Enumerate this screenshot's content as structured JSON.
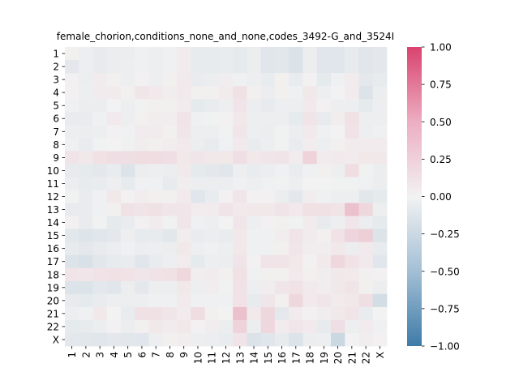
{
  "chart_data": {
    "type": "heatmap",
    "title": "female_chorion,conditions_none_and_none,codes_3492-G_and_3524I",
    "x_categories": [
      "1",
      "2",
      "3",
      "4",
      "5",
      "6",
      "7",
      "8",
      "9",
      "10",
      "11",
      "12",
      "13",
      "14",
      "15",
      "16",
      "17",
      "18",
      "19",
      "20",
      "21",
      "22",
      "X"
    ],
    "y_categories": [
      "1",
      "2",
      "3",
      "4",
      "5",
      "6",
      "7",
      "8",
      "9",
      "10",
      "11",
      "12",
      "13",
      "14",
      "15",
      "16",
      "17",
      "18",
      "19",
      "20",
      "21",
      "22",
      "X"
    ],
    "colorbar": {
      "range": [
        -1.0,
        1.0
      ],
      "ticks": [
        1.0,
        0.75,
        0.5,
        0.25,
        0.0,
        -0.25,
        -0.5,
        -0.75,
        -1.0
      ],
      "tick_labels": [
        "1.00",
        "0.75",
        "0.50",
        "0.25",
        "0.00",
        "−0.25",
        "−0.50",
        "−0.75",
        "−1.00"
      ],
      "colormap": "diverging blue-white-red",
      "low_color": "#3e7ba8",
      "mid_color": "#f2f2f2",
      "high_color": "#d9436f"
    },
    "values": [
      [
        0.02,
        -0.03,
        -0.06,
        -0.04,
        -0.04,
        -0.02,
        -0.03,
        -0.02,
        0.04,
        -0.06,
        -0.06,
        -0.05,
        -0.07,
        -0.04,
        -0.1,
        -0.09,
        -0.13,
        -0.04,
        -0.1,
        -0.1,
        -0.06,
        -0.1,
        -0.08
      ],
      [
        -0.08,
        -0.03,
        -0.06,
        -0.04,
        -0.03,
        -0.02,
        -0.03,
        -0.02,
        0.04,
        -0.06,
        -0.06,
        -0.05,
        -0.07,
        -0.04,
        -0.1,
        -0.09,
        -0.13,
        -0.04,
        -0.1,
        -0.1,
        -0.06,
        -0.1,
        -0.08
      ],
      [
        0.01,
        -0.04,
        0.04,
        0.02,
        -0.03,
        0.01,
        -0.03,
        0.02,
        0.05,
        -0.05,
        -0.04,
        0.03,
        -0.02,
        -0.03,
        -0.05,
        0.02,
        -0.05,
        0.01,
        -0.07,
        -0.02,
        0.04,
        -0.08,
        -0.06
      ],
      [
        0.01,
        -0.03,
        0.04,
        0.04,
        0.02,
        0.07,
        0.05,
        0.03,
        0.05,
        0.02,
        0.02,
        0.04,
        0.1,
        0.02,
        -0.04,
        0.02,
        -0.02,
        0.06,
        -0.03,
        0.0,
        0.04,
        -0.12,
        -0.04
      ],
      [
        -0.02,
        -0.04,
        -0.04,
        0.0,
        -0.03,
        -0.01,
        0.02,
        0.02,
        0.04,
        -0.07,
        -0.05,
        -0.03,
        0.08,
        -0.04,
        -0.06,
        -0.03,
        -0.03,
        0.05,
        0.01,
        -0.03,
        -0.03,
        -0.07,
        -0.03
      ],
      [
        -0.05,
        -0.05,
        -0.02,
        0.05,
        -0.03,
        0.02,
        0.03,
        0.03,
        0.08,
        -0.02,
        -0.01,
        0.01,
        0.06,
        -0.03,
        -0.03,
        -0.03,
        -0.07,
        0.08,
        -0.06,
        0.03,
        0.1,
        -0.03,
        -0.03
      ],
      [
        -0.03,
        -0.04,
        -0.03,
        0.01,
        -0.02,
        0.04,
        0.04,
        0.02,
        0.07,
        -0.03,
        -0.03,
        -0.01,
        0.07,
        -0.03,
        -0.04,
        -0.01,
        -0.04,
        0.05,
        -0.02,
        0.0,
        0.09,
        -0.03,
        -0.02
      ],
      [
        -0.02,
        -0.05,
        -0.01,
        0.0,
        -0.02,
        0.03,
        0.02,
        0.03,
        0.05,
        -0.04,
        -0.06,
        -0.02,
        0.05,
        -0.05,
        -0.03,
        -0.01,
        -0.05,
        0.03,
        -0.03,
        0.02,
        0.04,
        0.04,
        0.04
      ],
      [
        0.08,
        0.06,
        0.1,
        0.11,
        0.11,
        0.12,
        0.12,
        0.11,
        0.06,
        0.07,
        0.06,
        0.06,
        0.11,
        0.06,
        0.07,
        0.08,
        0.04,
        0.18,
        0.04,
        0.05,
        0.04,
        0.06,
        0.06
      ],
      [
        -0.06,
        -0.07,
        -0.08,
        -0.05,
        -0.12,
        -0.04,
        -0.03,
        -0.04,
        0.05,
        -0.07,
        -0.08,
        -0.1,
        -0.03,
        -0.05,
        -0.04,
        -0.02,
        -0.05,
        -0.02,
        0.02,
        -0.03,
        0.12,
        -0.01,
        -0.04
      ],
      [
        -0.04,
        -0.06,
        -0.05,
        -0.03,
        -0.06,
        -0.02,
        -0.02,
        -0.06,
        0.03,
        -0.04,
        -0.04,
        -0.04,
        -0.02,
        -0.03,
        -0.02,
        -0.01,
        -0.03,
        0.0,
        0.0,
        -0.01,
        -0.01,
        -0.02,
        -0.04
      ],
      [
        -0.01,
        -0.05,
        -0.02,
        0.06,
        0.01,
        0.03,
        0.02,
        0.02,
        0.05,
        -0.1,
        -0.05,
        0.01,
        0.07,
        0.01,
        0.01,
        -0.04,
        -0.08,
        0.03,
        -0.02,
        -0.03,
        -0.03,
        -0.09,
        -0.07
      ],
      [
        -0.06,
        -0.05,
        -0.02,
        0.02,
        0.1,
        0.08,
        0.1,
        0.07,
        0.07,
        0.04,
        0.04,
        0.08,
        0.05,
        0.06,
        0.06,
        0.08,
        0.05,
        0.1,
        0.1,
        0.08,
        0.28,
        0.15,
        -0.03
      ],
      [
        0.01,
        -0.05,
        -0.01,
        -0.07,
        -0.05,
        0.01,
        0.04,
        -0.01,
        0.07,
        -0.02,
        -0.03,
        0.0,
        0.07,
        -0.03,
        0.01,
        0.02,
        -0.01,
        0.04,
        -0.06,
        -0.03,
        0.07,
        -0.04,
        -0.07
      ],
      [
        -0.09,
        -0.11,
        -0.1,
        -0.08,
        -0.03,
        -0.06,
        -0.06,
        -0.09,
        0.03,
        -0.05,
        -0.04,
        -0.05,
        0.06,
        -0.02,
        -0.02,
        0.03,
        0.08,
        0.04,
        0.02,
        0.09,
        0.17,
        0.2,
        -0.12
      ],
      [
        -0.06,
        -0.08,
        -0.06,
        -0.04,
        -0.02,
        -0.04,
        -0.03,
        -0.04,
        0.06,
        -0.03,
        -0.02,
        -0.03,
        0.06,
        -0.02,
        -0.02,
        0.02,
        0.07,
        0.03,
        0.03,
        0.06,
        -0.04,
        0.05,
        -0.06
      ],
      [
        -0.12,
        -0.14,
        -0.09,
        -0.06,
        -0.05,
        -0.1,
        -0.05,
        -0.03,
        0.04,
        -0.07,
        -0.03,
        -0.04,
        0.08,
        0.01,
        0.08,
        0.08,
        0.06,
        0.01,
        0.05,
        0.15,
        0.09,
        0.05,
        -0.1
      ],
      [
        0.08,
        0.07,
        0.09,
        0.1,
        0.09,
        0.07,
        0.09,
        0.1,
        0.15,
        0.03,
        0.04,
        0.02,
        0.1,
        -0.02,
        0.02,
        0.02,
        0.05,
        0.02,
        0.03,
        0.06,
        0.05,
        0.02,
        0.01
      ],
      [
        -0.12,
        -0.12,
        -0.08,
        -0.1,
        -0.04,
        -0.08,
        -0.03,
        -0.03,
        0.06,
        -0.03,
        0.03,
        -0.01,
        0.09,
        -0.03,
        0.03,
        0.07,
        0.09,
        0.05,
        0.03,
        0.06,
        0.08,
        0.02,
        -0.04
      ],
      [
        -0.06,
        -0.07,
        -0.05,
        -0.03,
        -0.04,
        -0.03,
        -0.02,
        -0.02,
        0.05,
        -0.02,
        -0.02,
        -0.02,
        0.09,
        -0.06,
        0.07,
        0.02,
        0.15,
        0.05,
        0.07,
        0.04,
        0.06,
        0.11,
        -0.18
      ],
      [
        -0.03,
        -0.02,
        0.06,
        0.0,
        -0.05,
        0.1,
        0.1,
        0.07,
        0.04,
        0.12,
        0.02,
        0.0,
        0.28,
        0.05,
        0.15,
        -0.08,
        0.04,
        0.01,
        0.03,
        0.06,
        0.08,
        -0.05,
        0.0
      ],
      [
        -0.07,
        -0.06,
        -0.04,
        0.01,
        -0.04,
        0.02,
        0.06,
        0.04,
        0.06,
        0.01,
        0.03,
        -0.04,
        0.18,
        -0.04,
        0.15,
        0.04,
        0.07,
        0.05,
        -0.06,
        0.11,
        -0.03,
        0.04,
        -0.02
      ],
      [
        -0.08,
        -0.09,
        -0.1,
        -0.08,
        -0.09,
        -0.1,
        -0.03,
        0.02,
        0.03,
        -0.03,
        -0.04,
        -0.05,
        0.08,
        -0.13,
        -0.1,
        -0.06,
        -0.12,
        -0.04,
        -0.03,
        -0.22,
        0.0,
        0.03,
        0.01
      ]
    ]
  }
}
